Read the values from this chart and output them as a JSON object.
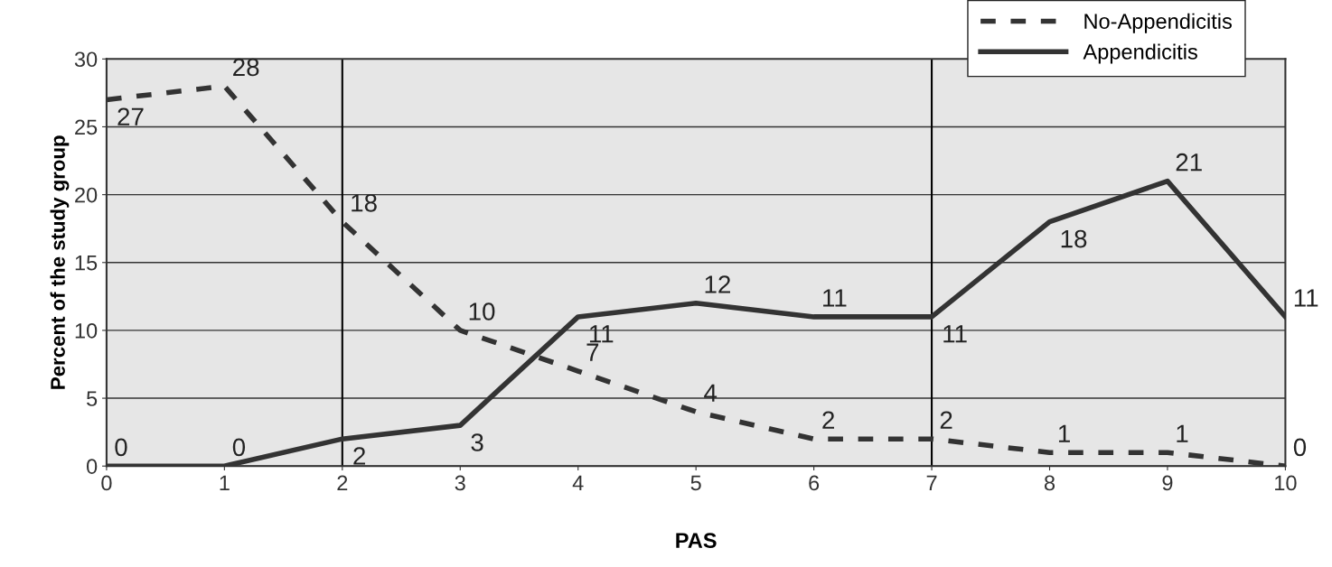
{
  "chart_data": {
    "type": "line",
    "xlabel": "PAS",
    "ylabel": "Percent of the study group",
    "x": [
      0,
      1,
      2,
      3,
      4,
      5,
      6,
      7,
      8,
      9,
      10
    ],
    "series": [
      {
        "name": "No-Appendicitis",
        "color": "#333333",
        "line_style": "dashed",
        "values": [
          27,
          28,
          18,
          10,
          7,
          4,
          2,
          2,
          1,
          1,
          0
        ]
      },
      {
        "name": "Appendicitis",
        "color": "#333333",
        "line_style": "solid",
        "values": [
          0,
          0,
          2,
          3,
          11,
          12,
          11,
          11,
          18,
          21,
          11
        ]
      }
    ],
    "xlim": [
      0,
      10
    ],
    "xticks": [
      0,
      1,
      2,
      3,
      4,
      5,
      6,
      7,
      8,
      9,
      10
    ],
    "ylim": [
      0,
      30
    ],
    "yticks": [
      0,
      5,
      10,
      15,
      20,
      25,
      30
    ],
    "ref_lines": [
      {
        "axis": "x",
        "value": 2,
        "color": "#000000"
      },
      {
        "axis": "x",
        "value": 7,
        "color": "#000000"
      }
    ],
    "grid": "y",
    "legend": "top right",
    "data_labels": true,
    "marker": "none"
  }
}
